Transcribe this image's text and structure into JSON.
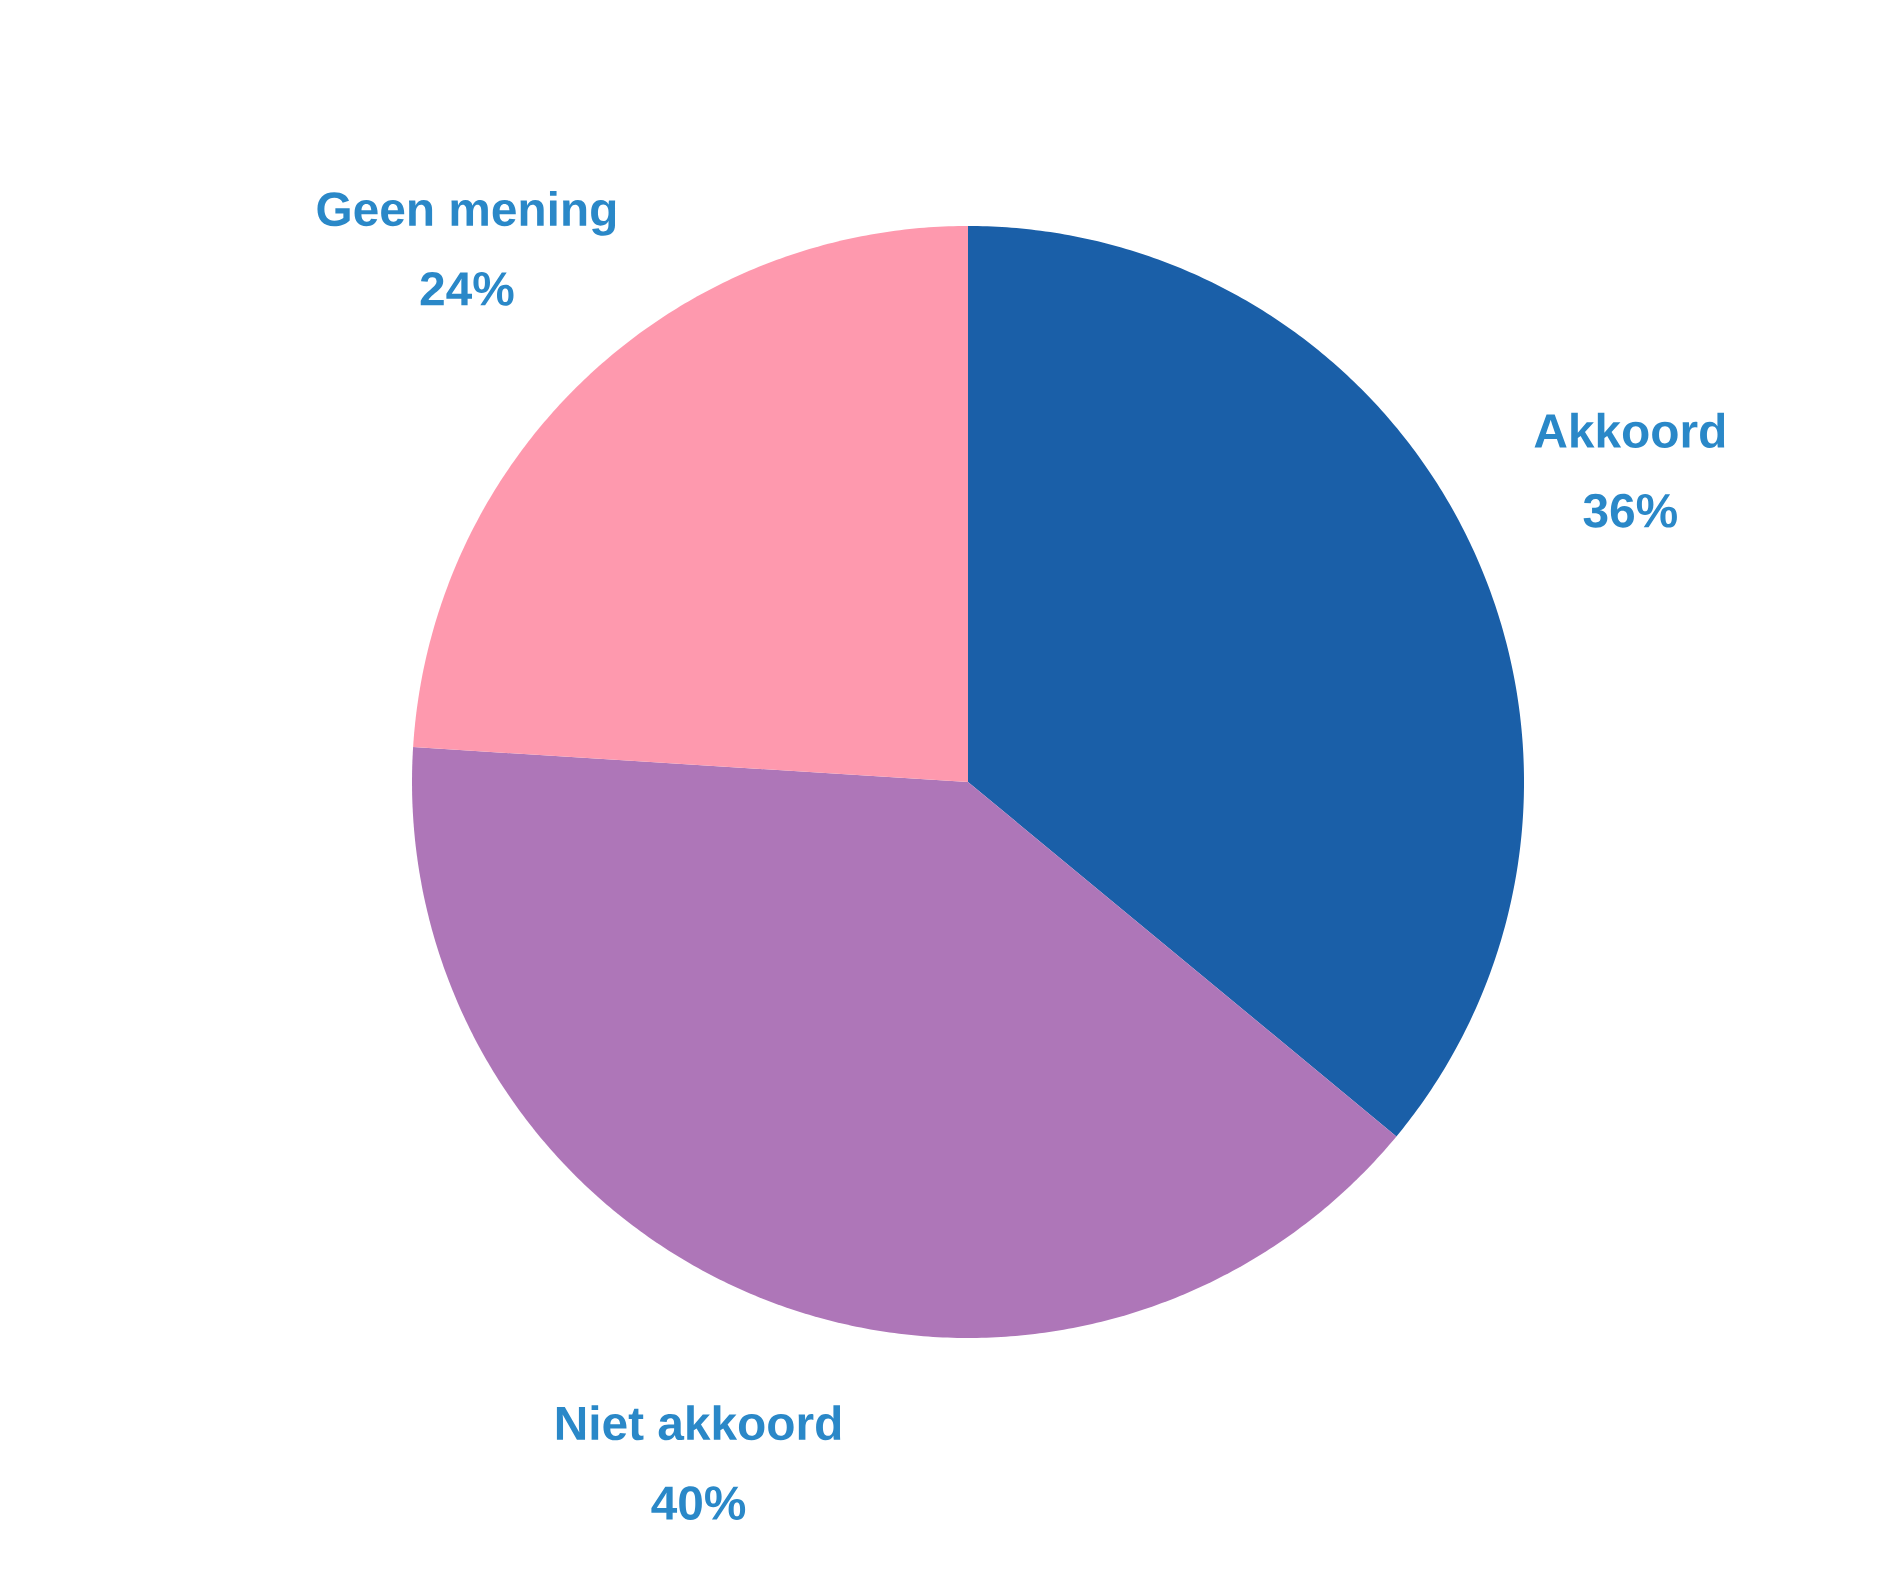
{
  "chart_data": {
    "type": "pie",
    "categories": [
      "Akkoord",
      "Niet akkoord",
      "Geen mening"
    ],
    "values": [
      36,
      40,
      24
    ],
    "colors": [
      "#1a5fa8",
      "#ae76b8",
      "#fe99ae"
    ],
    "value_labels": [
      "36%",
      "40%",
      "24%"
    ]
  }
}
